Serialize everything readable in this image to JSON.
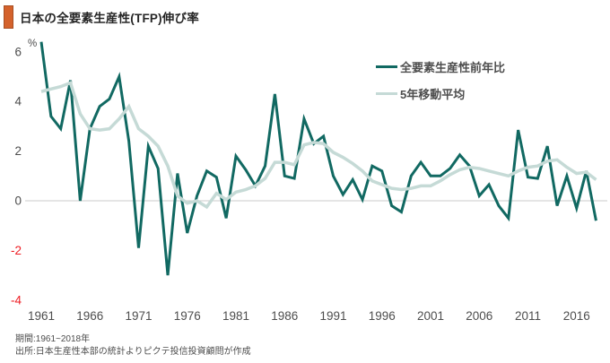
{
  "title": "日本の全要素生産性(TFP)伸び率",
  "accent_color": "#d4622c",
  "footer": {
    "line1": "期間:1961~2018年",
    "line2": "出所:日本生産性本部の統計よりピクテ投信投資顧問が作成"
  },
  "chart_data": {
    "type": "line",
    "title": "日本の全要素生産性(TFP)伸び率",
    "unit_label": "%",
    "legend_position": "top-right",
    "grid": "zero-line-only",
    "tick_color": "#4d4d4d",
    "negative_tick_color": "#ee1c23",
    "zero_line_color": "#cbcbcb",
    "xlim": [
      1961,
      2018
    ],
    "ylim": [
      -4,
      6.5
    ],
    "y_ticks": [
      6,
      4,
      2,
      0,
      -2,
      -4
    ],
    "x_ticks": [
      1961,
      1966,
      1971,
      1976,
      1981,
      1986,
      1991,
      1996,
      2001,
      2006,
      2011,
      2016
    ],
    "x": [
      1961,
      1962,
      1963,
      1964,
      1965,
      1966,
      1967,
      1968,
      1969,
      1970,
      1971,
      1972,
      1973,
      1974,
      1975,
      1976,
      1977,
      1978,
      1979,
      1980,
      1981,
      1982,
      1983,
      1984,
      1985,
      1986,
      1987,
      1988,
      1989,
      1990,
      1991,
      1992,
      1993,
      1994,
      1995,
      1996,
      1997,
      1998,
      1999,
      2000,
      2001,
      2002,
      2003,
      2004,
      2005,
      2006,
      2007,
      2008,
      2009,
      2010,
      2011,
      2012,
      2013,
      2014,
      2015,
      2016,
      2017,
      2018
    ],
    "series": [
      {
        "name": "全要素生産性前年比",
        "color": "#116962",
        "values": [
          6.4,
          3.4,
          2.9,
          4.85,
          0.0,
          2.9,
          3.8,
          4.1,
          5.0,
          2.4,
          -1.9,
          2.2,
          1.3,
          -3.0,
          1.1,
          -1.3,
          0.2,
          1.2,
          0.95,
          -0.7,
          1.8,
          1.25,
          0.6,
          1.4,
          4.3,
          1.0,
          0.9,
          3.3,
          2.3,
          2.6,
          1.0,
          0.25,
          0.85,
          0.05,
          1.4,
          1.2,
          -0.2,
          -0.45,
          1.0,
          1.55,
          1.0,
          1.0,
          1.3,
          1.85,
          1.4,
          0.2,
          0.65,
          -0.2,
          -0.7,
          2.85,
          0.95,
          0.9,
          2.2,
          -0.2,
          1.0,
          -0.3,
          1.2,
          -0.8
        ]
      },
      {
        "name": "5年移動平均",
        "color": "#c5dad6",
        "values": [
          4.4,
          4.5,
          4.6,
          4.75,
          3.5,
          2.9,
          2.85,
          2.9,
          3.3,
          3.8,
          2.9,
          2.6,
          2.2,
          1.4,
          0.2,
          -0.1,
          0.0,
          -0.25,
          0.3,
          0.05,
          0.35,
          0.45,
          0.6,
          0.9,
          1.55,
          1.55,
          1.45,
          2.25,
          2.35,
          2.3,
          1.95,
          1.75,
          1.5,
          1.2,
          0.8,
          0.65,
          0.5,
          0.45,
          0.5,
          0.6,
          0.6,
          0.8,
          1.05,
          1.25,
          1.35,
          1.3,
          1.2,
          1.1,
          1.0,
          1.2,
          1.35,
          1.4,
          1.6,
          1.65,
          1.35,
          1.1,
          1.15,
          0.85
        ]
      }
    ]
  }
}
